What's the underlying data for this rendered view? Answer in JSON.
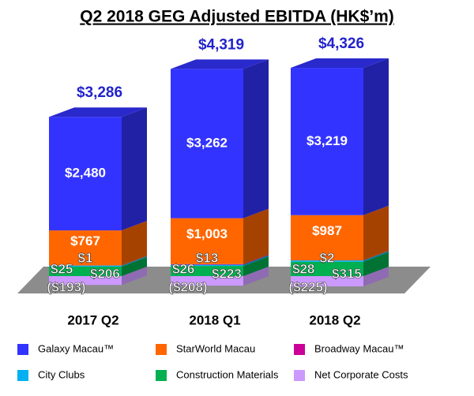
{
  "chart_data": {
    "type": "bar3d-stacked",
    "title": "Q2 2018 GEG Adjusted EBITDA (HK$’m)",
    "categories": [
      "2017 Q2",
      "2018 Q1",
      "2018 Q2"
    ],
    "series": [
      {
        "name": "Galaxy Macau™",
        "color": "#3333ff",
        "values": [
          2480,
          3262,
          3219
        ],
        "value_labels": [
          "$2,480",
          "$3,262",
          "$3,219"
        ]
      },
      {
        "name": "StarWorld Macau",
        "color": "#ff6600",
        "values": [
          767,
          1003,
          987
        ],
        "value_labels": [
          "$767",
          "$1,003",
          "$987"
        ]
      },
      {
        "name": "Broadway Macau™",
        "color": "#cc0099",
        "values": [
          1,
          13,
          2
        ],
        "value_labels": [
          "$1",
          "$13",
          "$2"
        ]
      },
      {
        "name": "City Clubs",
        "color": "#00b0f0",
        "values": [
          25,
          26,
          28
        ],
        "value_labels": [
          "$25",
          "$26",
          "$28"
        ]
      },
      {
        "name": "Construction Materials",
        "color": "#00b050",
        "values": [
          206,
          223,
          315
        ],
        "value_labels": [
          "$206",
          "$223",
          "$315"
        ]
      },
      {
        "name": "Net Corporate Costs",
        "color": "#cc99ff",
        "values": [
          -193,
          -208,
          -225
        ],
        "value_labels": [
          "($193)",
          "($208)",
          "($225)"
        ]
      }
    ],
    "totals": {
      "color": "#2222cc",
      "values": [
        3286,
        4319,
        4326
      ],
      "value_labels": [
        "$3,286",
        "$4,319",
        "$4,326"
      ]
    }
  }
}
